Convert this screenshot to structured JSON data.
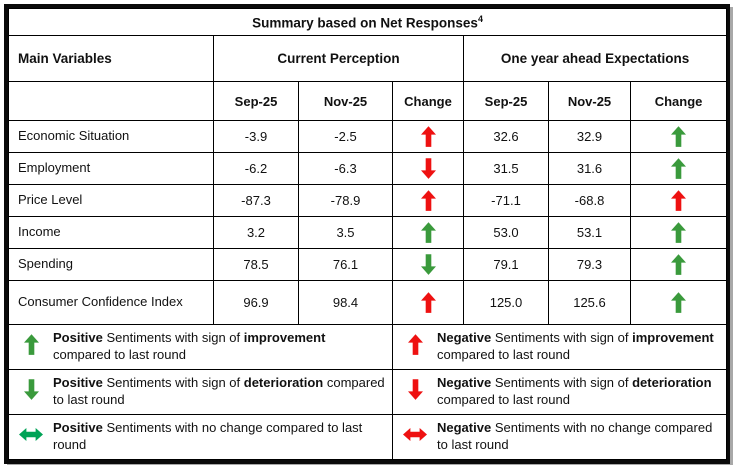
{
  "title": "Summary based on Net Responses",
  "title_sup": "4",
  "colors": {
    "positive": "#3a9a3c",
    "negative": "#ee1111",
    "positive_nochange": "#00a356",
    "negative_nochange": "#ee1111"
  },
  "header": {
    "main_variables": "Main Variables",
    "current_perception": "Current Perception",
    "one_year_ahead": "One year ahead Expectations",
    "sub_columns": [
      "Sep-25",
      "Nov-25",
      "Change",
      "Sep-25",
      "Nov-25",
      "Change"
    ]
  },
  "rows": [
    {
      "variable": "Economic Situation",
      "current_sep": "-3.9",
      "current_nov": "-2.5",
      "current_change": {
        "dir": "up",
        "color_key": "negative"
      },
      "exp_sep": "32.6",
      "exp_nov": "32.9",
      "exp_change": {
        "dir": "up",
        "color_key": "positive"
      }
    },
    {
      "variable": "Employment",
      "current_sep": "-6.2",
      "current_nov": "-6.3",
      "current_change": {
        "dir": "down",
        "color_key": "negative"
      },
      "exp_sep": "31.5",
      "exp_nov": "31.6",
      "exp_change": {
        "dir": "up",
        "color_key": "positive"
      }
    },
    {
      "variable": "Price Level",
      "current_sep": "-87.3",
      "current_nov": "-78.9",
      "current_change": {
        "dir": "up",
        "color_key": "negative"
      },
      "exp_sep": "-71.1",
      "exp_nov": "-68.8",
      "exp_change": {
        "dir": "up",
        "color_key": "negative"
      }
    },
    {
      "variable": "Income",
      "current_sep": "3.2",
      "current_nov": "3.5",
      "current_change": {
        "dir": "up",
        "color_key": "positive"
      },
      "exp_sep": "53.0",
      "exp_nov": "53.1",
      "exp_change": {
        "dir": "up",
        "color_key": "positive"
      }
    },
    {
      "variable": "Spending",
      "current_sep": "78.5",
      "current_nov": "76.1",
      "current_change": {
        "dir": "down",
        "color_key": "positive"
      },
      "exp_sep": "79.1",
      "exp_nov": "79.3",
      "exp_change": {
        "dir": "up",
        "color_key": "positive"
      }
    },
    {
      "variable": "Consumer Confidence Index",
      "current_sep": "96.9",
      "current_nov": "98.4",
      "current_change": {
        "dir": "up",
        "color_key": "negative"
      },
      "exp_sep": "125.0",
      "exp_nov": "125.6",
      "exp_change": {
        "dir": "up",
        "color_key": "positive"
      }
    }
  ],
  "legend": [
    {
      "icon": {
        "dir": "up",
        "color_key": "positive"
      },
      "lead": "Positive",
      "mid": " Sentiments with sign of ",
      "key": "improvement",
      "tail": " compared to last round"
    },
    {
      "icon": {
        "dir": "up",
        "color_key": "negative"
      },
      "lead": "Negative",
      "mid": " Sentiments with sign of ",
      "key": "improvement",
      "tail": " compared to last round"
    },
    {
      "icon": {
        "dir": "down",
        "color_key": "positive"
      },
      "lead": "Positive",
      "mid": " Sentiments with sign of ",
      "key": "deterioration",
      "tail": " compared to last round"
    },
    {
      "icon": {
        "dir": "down",
        "color_key": "negative"
      },
      "lead": "Negative",
      "mid": " Sentiments with sign of ",
      "key": "deterioration",
      "tail": " compared to last round"
    },
    {
      "icon": {
        "dir": "both",
        "color_key": "positive_nochange"
      },
      "lead": "Positive",
      "mid": " Sentiments with no change compared to last round",
      "key": "",
      "tail": ""
    },
    {
      "icon": {
        "dir": "both",
        "color_key": "negative_nochange"
      },
      "lead": "Negative",
      "mid": " Sentiments with no change compared to last round",
      "key": "",
      "tail": ""
    }
  ]
}
